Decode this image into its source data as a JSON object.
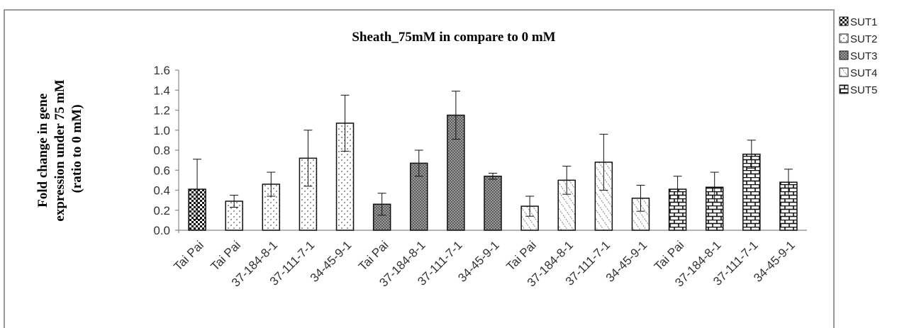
{
  "chart_data": {
    "type": "bar",
    "title": "Sheath_75mM in compare to 0 mM",
    "ylabel_lines": [
      "Fold change in gene",
      "expression under 75 mM",
      "(ratio to 0 mM)"
    ],
    "xlabel": "",
    "ylim": [
      0,
      1.6
    ],
    "y_ticks": [
      "0.0",
      "0.2",
      "0.4",
      "0.6",
      "0.8",
      "1.0",
      "1.2",
      "1.4",
      "1.6"
    ],
    "grid": false,
    "legend_position": "right",
    "legend": [
      "SUT1",
      "SUT2",
      "SUT3",
      "SUT4",
      "SUT5"
    ],
    "bars": [
      {
        "category": "Tai Pai",
        "series": "SUT1",
        "value": 0.41,
        "error": 0.3
      },
      {
        "category": "Tai Pai",
        "series": "SUT2",
        "value": 0.29,
        "error": 0.06
      },
      {
        "category": "37-184-8-1",
        "series": "SUT2",
        "value": 0.46,
        "error": 0.12
      },
      {
        "category": "37-111-7-1",
        "series": "SUT2",
        "value": 0.72,
        "error": 0.28
      },
      {
        "category": "34-45-9-1",
        "series": "SUT2",
        "value": 1.07,
        "error": 0.28
      },
      {
        "category": "Tai Pai",
        "series": "SUT3",
        "value": 0.26,
        "error": 0.11
      },
      {
        "category": "37-184-8-1",
        "series": "SUT3",
        "value": 0.67,
        "error": 0.13
      },
      {
        "category": "37-111-7-1",
        "series": "SUT3",
        "value": 1.15,
        "error": 0.24
      },
      {
        "category": "34-45-9-1",
        "series": "SUT3",
        "value": 0.54,
        "error": 0.03
      },
      {
        "category": "Tai Pai",
        "series": "SUT4",
        "value": 0.24,
        "error": 0.1
      },
      {
        "category": "37-184-8-1",
        "series": "SUT4",
        "value": 0.5,
        "error": 0.14
      },
      {
        "category": "37-111-7-1",
        "series": "SUT4",
        "value": 0.68,
        "error": 0.28
      },
      {
        "category": "34-45-9-1",
        "series": "SUT4",
        "value": 0.32,
        "error": 0.13
      },
      {
        "category": "Tai Pai",
        "series": "SUT5",
        "value": 0.41,
        "error": 0.13
      },
      {
        "category": "37-184-8-1",
        "series": "SUT5",
        "value": 0.43,
        "error": 0.15
      },
      {
        "category": "37-111-7-1",
        "series": "SUT5",
        "value": 0.76,
        "error": 0.14
      },
      {
        "category": "34-45-9-1",
        "series": "SUT5",
        "value": 0.48,
        "error": 0.13
      }
    ]
  }
}
